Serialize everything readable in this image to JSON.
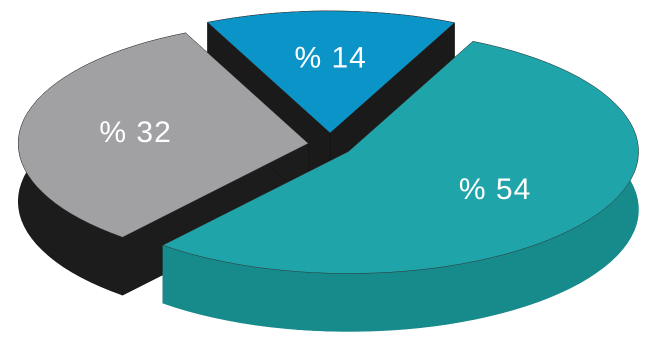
{
  "chart_data": {
    "type": "pie3d",
    "categories": [
      null,
      null,
      null
    ],
    "values": [
      14,
      54,
      32
    ],
    "value_labels": [
      "% 14",
      "% 54",
      "% 32"
    ],
    "colors": [
      "#0b94c8",
      "#1fa4a9",
      "#a1a1a3"
    ],
    "side_colors": [
      "#1a1a1a",
      "#178a8c",
      "#1c1c1c"
    ]
  }
}
